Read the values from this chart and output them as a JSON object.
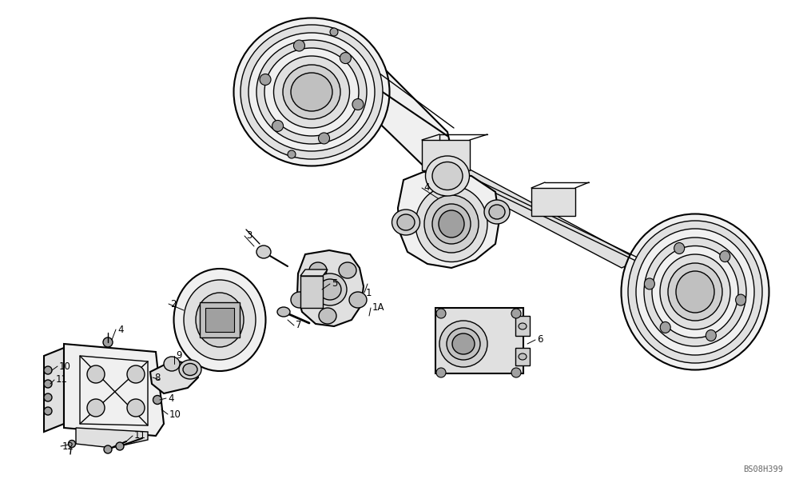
{
  "background_color": "#ffffff",
  "figure_width": 10.0,
  "figure_height": 6.04,
  "dpi": 100,
  "watermark": "BS08H399",
  "watermark_color": "#666666",
  "watermark_fontsize": 7.5
}
